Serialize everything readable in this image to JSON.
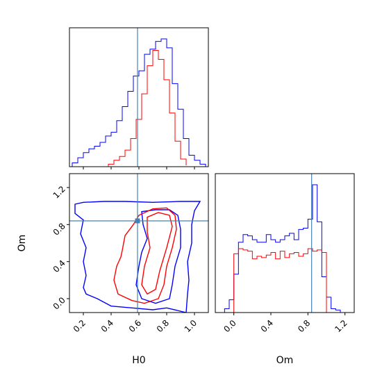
{
  "chart_data": {
    "type": "corner",
    "parameters": [
      "H0",
      "Om"
    ],
    "truths": {
      "H0": 0.59,
      "Om": 0.84
    },
    "colors": {
      "blue": "#0000ff",
      "red": "#ff0000",
      "truth": "#4682b4"
    },
    "panels": [
      {
        "id": "hist-h0",
        "type": "histogram",
        "xlim": [
          0.1,
          1.1
        ],
        "xticks": [
          0.2,
          0.4,
          0.6,
          0.8,
          1.0
        ],
        "ymax": 1.0,
        "truth_x": 0.59,
        "series": [
          {
            "color": "blue",
            "bin_edges": [
              0.12,
              0.16,
              0.2,
              0.24,
              0.28,
              0.32,
              0.36,
              0.4,
              0.44,
              0.48,
              0.52,
              0.56,
              0.6,
              0.64,
              0.68,
              0.72,
              0.76,
              0.8,
              0.84,
              0.88,
              0.92,
              0.96,
              1.0,
              1.04,
              1.08
            ],
            "heights": [
              0.03,
              0.07,
              0.11,
              0.14,
              0.16,
              0.19,
              0.24,
              0.27,
              0.36,
              0.47,
              0.59,
              0.71,
              0.75,
              0.88,
              0.92,
              0.98,
              1.0,
              0.93,
              0.65,
              0.45,
              0.22,
              0.09,
              0.05,
              0.02
            ]
          },
          {
            "color": "red",
            "bin_edges": [
              0.38,
              0.42,
              0.46,
              0.5,
              0.54,
              0.58,
              0.62,
              0.66,
              0.7,
              0.74,
              0.78,
              0.82,
              0.86,
              0.9,
              0.94
            ],
            "heights": [
              0.02,
              0.05,
              0.08,
              0.13,
              0.22,
              0.37,
              0.57,
              0.79,
              0.91,
              0.84,
              0.68,
              0.42,
              0.2,
              0.06,
              0.01
            ]
          }
        ]
      },
      {
        "id": "contour-h0-om",
        "type": "contour",
        "xlim": [
          0.1,
          1.1
        ],
        "ylim": [
          -0.15,
          1.35
        ],
        "xticks": [
          0.2,
          0.4,
          0.6,
          0.8,
          1.0
        ],
        "yticks": [
          0.0,
          0.4,
          0.8,
          1.2
        ],
        "truth": [
          0.59,
          0.84
        ],
        "contours": [
          {
            "color": "blue",
            "points": [
              [
                0.14,
                1.02
              ],
              [
                0.2,
                1.04
              ],
              [
                0.35,
                1.05
              ],
              [
                0.5,
                1.05
              ],
              [
                0.7,
                1.04
              ],
              [
                0.9,
                1.05
              ],
              [
                1.04,
                1.05
              ],
              [
                1.0,
                0.95
              ],
              [
                0.98,
                0.8
              ],
              [
                0.98,
                0.6
              ],
              [
                0.95,
                0.4
              ],
              [
                0.96,
                0.2
              ],
              [
                0.95,
                0.05
              ],
              [
                0.94,
                -0.15
              ],
              [
                0.8,
                -0.1
              ],
              [
                0.7,
                -0.12
              ],
              [
                0.55,
                -0.1
              ],
              [
                0.4,
                -0.08
              ],
              [
                0.3,
                0.0
              ],
              [
                0.22,
                0.05
              ],
              [
                0.2,
                0.12
              ],
              [
                0.22,
                0.25
              ],
              [
                0.2,
                0.4
              ],
              [
                0.22,
                0.55
              ],
              [
                0.18,
                0.7
              ],
              [
                0.2,
                0.85
              ],
              [
                0.14,
                0.92
              ],
              [
                0.14,
                1.02
              ]
            ]
          },
          {
            "color": "blue",
            "points": [
              [
                0.62,
                0.94
              ],
              [
                0.72,
                0.96
              ],
              [
                0.82,
                0.96
              ],
              [
                0.88,
                0.9
              ],
              [
                0.9,
                0.75
              ],
              [
                0.9,
                0.55
              ],
              [
                0.86,
                0.35
              ],
              [
                0.84,
                0.15
              ],
              [
                0.82,
                0.0
              ],
              [
                0.72,
                -0.05
              ],
              [
                0.62,
                0.0
              ],
              [
                0.58,
                0.15
              ],
              [
                0.6,
                0.35
              ],
              [
                0.62,
                0.5
              ],
              [
                0.66,
                0.65
              ],
              [
                0.63,
                0.8
              ],
              [
                0.62,
                0.94
              ]
            ]
          },
          {
            "color": "red",
            "points": [
              [
                0.48,
                0.52
              ],
              [
                0.5,
                0.68
              ],
              [
                0.56,
                0.8
              ],
              [
                0.6,
                0.9
              ],
              [
                0.7,
                0.97
              ],
              [
                0.8,
                0.98
              ],
              [
                0.86,
                0.9
              ],
              [
                0.87,
                0.75
              ],
              [
                0.84,
                0.55
              ],
              [
                0.8,
                0.35
              ],
              [
                0.78,
                0.15
              ],
              [
                0.74,
                0.0
              ],
              [
                0.64,
                -0.05
              ],
              [
                0.55,
                -0.02
              ],
              [
                0.45,
                0.05
              ],
              [
                0.42,
                0.2
              ],
              [
                0.44,
                0.35
              ],
              [
                0.47,
                0.45
              ],
              [
                0.48,
                0.52
              ]
            ]
          },
          {
            "color": "red",
            "points": [
              [
                0.66,
                0.88
              ],
              [
                0.74,
                0.93
              ],
              [
                0.82,
                0.9
              ],
              [
                0.84,
                0.78
              ],
              [
                0.8,
                0.55
              ],
              [
                0.75,
                0.3
              ],
              [
                0.72,
                0.1
              ],
              [
                0.66,
                0.05
              ],
              [
                0.62,
                0.15
              ],
              [
                0.64,
                0.35
              ],
              [
                0.68,
                0.55
              ],
              [
                0.66,
                0.72
              ],
              [
                0.66,
                0.88
              ]
            ]
          }
        ]
      },
      {
        "id": "hist-om",
        "type": "histogram",
        "xlim": [
          -0.2,
          1.3
        ],
        "xticks": [
          0.0,
          0.4,
          0.8,
          1.2
        ],
        "ymax": 1.0,
        "truth_x": 0.84,
        "series": [
          {
            "color": "blue",
            "bin_edges": [
              -0.1,
              -0.05,
              0.0,
              0.05,
              0.1,
              0.15,
              0.2,
              0.25,
              0.3,
              0.35,
              0.4,
              0.45,
              0.5,
              0.55,
              0.6,
              0.65,
              0.7,
              0.75,
              0.8,
              0.85,
              0.9,
              0.95,
              1.0,
              1.05,
              1.1,
              1.15
            ],
            "heights": [
              0.03,
              0.1,
              0.3,
              0.55,
              0.61,
              0.6,
              0.57,
              0.55,
              0.55,
              0.61,
              0.57,
              0.55,
              0.57,
              0.6,
              0.62,
              0.57,
              0.65,
              0.66,
              0.73,
              1.0,
              0.71,
              0.28,
              0.12,
              0.03,
              0.02
            ]
          },
          {
            "color": "red",
            "bin_edges": [
              0.0,
              0.05,
              0.1,
              0.15,
              0.2,
              0.25,
              0.3,
              0.35,
              0.4,
              0.45,
              0.5,
              0.55,
              0.6,
              0.65,
              0.7,
              0.75,
              0.8,
              0.85,
              0.9,
              0.95,
              1.0
            ],
            "heights": [
              0.46,
              0.5,
              0.49,
              0.48,
              0.42,
              0.44,
              0.43,
              0.45,
              0.47,
              0.42,
              0.48,
              0.43,
              0.46,
              0.47,
              0.44,
              0.46,
              0.5,
              0.48,
              0.49,
              0.47
            ]
          }
        ]
      }
    ],
    "xlabels": [
      "H0",
      "Om"
    ],
    "ylabels": [
      "Om"
    ]
  }
}
